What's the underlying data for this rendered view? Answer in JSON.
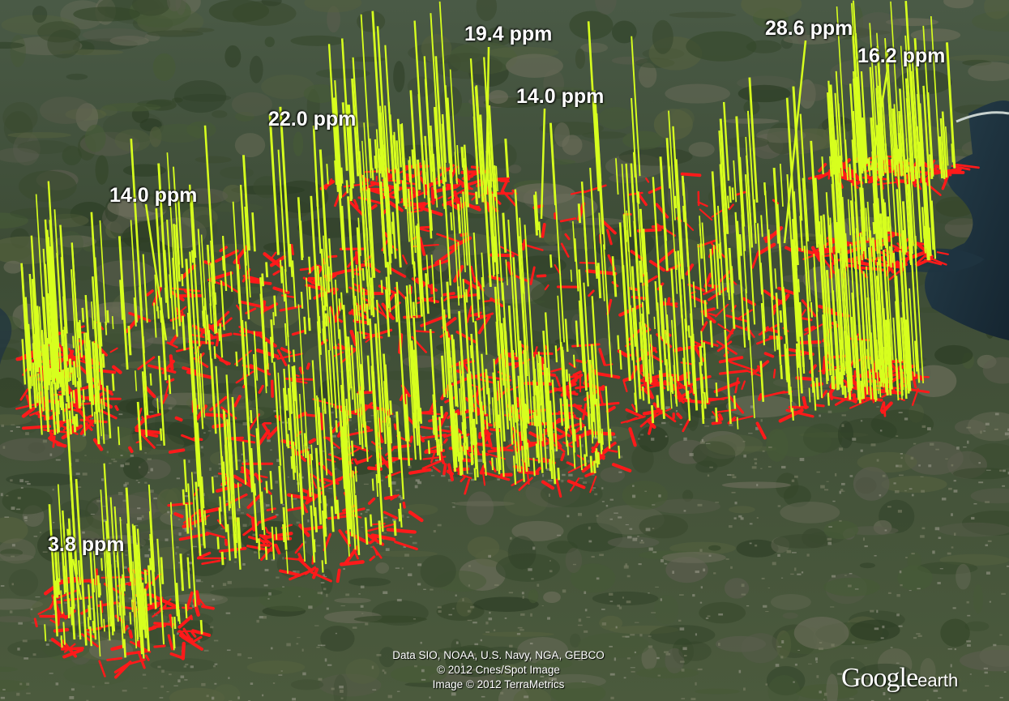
{
  "labels": [
    {
      "text": "19.4 ppm"
    },
    {
      "text": "28.6 ppm"
    },
    {
      "text": "16.2 ppm"
    },
    {
      "text": "14.0 ppm"
    },
    {
      "text": "22.0 ppm"
    },
    {
      "text": "14.0 ppm"
    },
    {
      "text": "3.8 ppm"
    }
  ],
  "credits": {
    "line1": "Data SIO, NOAA, U.S. Navy, NGA, GEBCO",
    "line2": "© 2012 Cnes/Spot Image",
    "line3": "Image © 2012 TerraMetrics"
  },
  "logo": {
    "google": "Google",
    "earth": "earth"
  },
  "colors": {
    "roads": "#ff1a1a",
    "bars": "#d7ff1e",
    "water": "#1f3340",
    "land": "#3e4d33"
  }
}
